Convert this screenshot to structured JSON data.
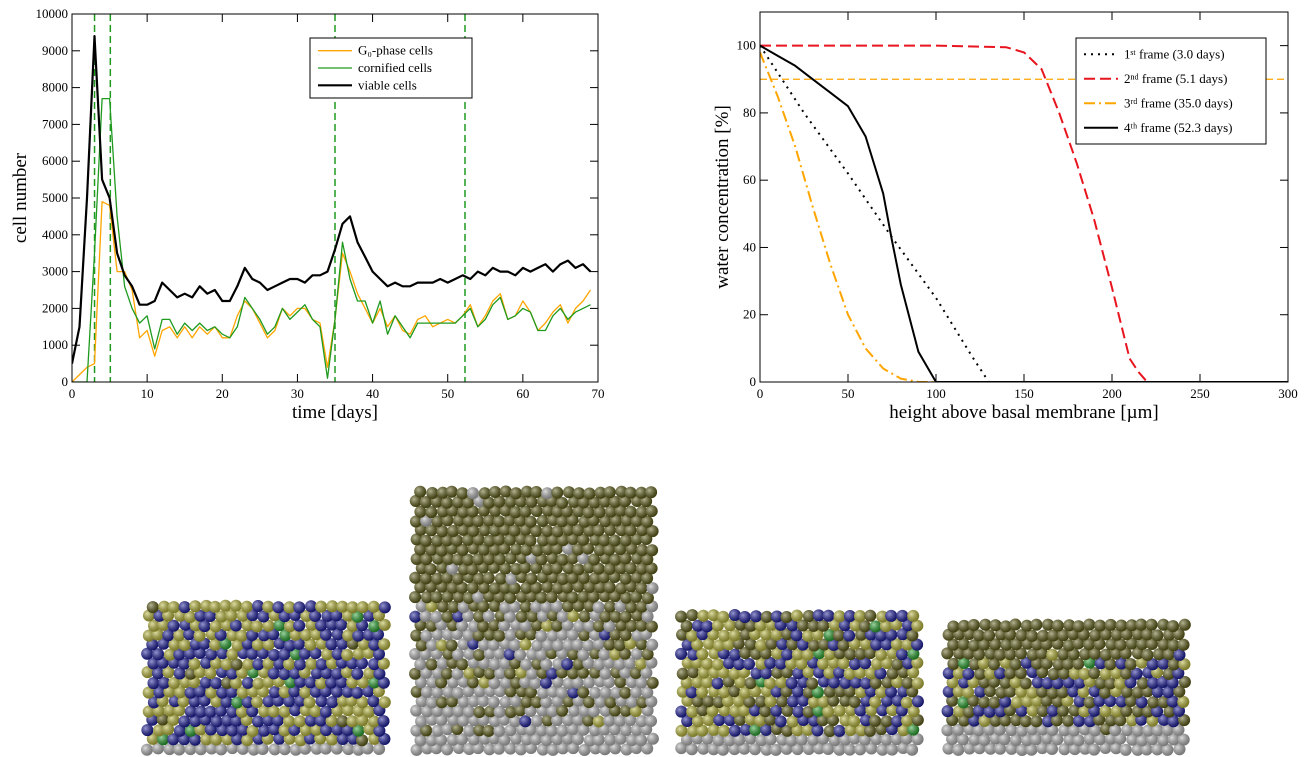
{
  "chart_data": [
    {
      "type": "line",
      "xlabel": "time [days]",
      "ylabel": "cell number",
      "xlim": [
        0,
        70
      ],
      "ylim": [
        0,
        10000
      ],
      "xticks": [
        0,
        10,
        20,
        30,
        40,
        50,
        60,
        70
      ],
      "yticks": [
        0,
        1000,
        2000,
        3000,
        4000,
        5000,
        6000,
        7000,
        8000,
        9000,
        10000
      ],
      "vlines": [
        3.0,
        5.1,
        35.0,
        52.3
      ],
      "vline_color": "#1f9a1f",
      "x": [
        0,
        1,
        2,
        3,
        4,
        5,
        6,
        7,
        8,
        9,
        10,
        11,
        12,
        13,
        14,
        15,
        16,
        17,
        18,
        19,
        20,
        21,
        22,
        23,
        24,
        25,
        26,
        27,
        28,
        29,
        30,
        31,
        32,
        33,
        34,
        35,
        36,
        37,
        38,
        39,
        40,
        41,
        42,
        43,
        44,
        45,
        46,
        47,
        48,
        49,
        50,
        51,
        52,
        53,
        54,
        55,
        56,
        57,
        58,
        59,
        60,
        61,
        62,
        63,
        64,
        65,
        66,
        67,
        68,
        69
      ],
      "series": [
        {
          "name": "G₀-phase cells",
          "color": "#ffa500",
          "width": 1.3,
          "dash": "solid",
          "values": [
            0,
            200,
            400,
            500,
            4900,
            4800,
            3000,
            3000,
            2500,
            1200,
            1400,
            700,
            1400,
            1500,
            1200,
            1500,
            1200,
            1500,
            1300,
            1500,
            1200,
            1200,
            1800,
            2200,
            2000,
            1600,
            1200,
            1400,
            2000,
            1800,
            2000,
            2000,
            1700,
            1600,
            400,
            1700,
            3500,
            3000,
            2400,
            2000,
            1600,
            2000,
            1500,
            1800,
            1400,
            1300,
            1700,
            1800,
            1500,
            1600,
            1700,
            1600,
            1800,
            2100,
            1500,
            1800,
            2200,
            2400,
            1700,
            1800,
            2200,
            1900,
            1400,
            1600,
            1900,
            2100,
            1600,
            2000,
            2200,
            2500
          ]
        },
        {
          "name": "cornified cells",
          "color": "#1f9a1f",
          "width": 1.3,
          "dash": "solid",
          "values": [
            0,
            0,
            0,
            3500,
            7700,
            7700,
            4500,
            2600,
            2000,
            1600,
            1800,
            900,
            1700,
            1700,
            1300,
            1600,
            1400,
            1600,
            1400,
            1500,
            1300,
            1200,
            1500,
            2300,
            2000,
            1700,
            1300,
            1500,
            2000,
            1700,
            1900,
            2100,
            1700,
            1500,
            100,
            1700,
            3800,
            2800,
            2200,
            2200,
            1600,
            2200,
            1300,
            1800,
            1500,
            1200,
            1600,
            1600,
            1600,
            1600,
            1600,
            1600,
            1800,
            2000,
            1500,
            1700,
            2100,
            2300,
            1700,
            1800,
            2000,
            1900,
            1400,
            1400,
            1800,
            2000,
            1700,
            1900,
            2000,
            2100
          ]
        },
        {
          "name": "viable cells",
          "color": "#000000",
          "width": 2.2,
          "dash": "solid",
          "values": [
            500,
            1500,
            5000,
            9400,
            5500,
            5000,
            3500,
            2900,
            2600,
            2100,
            2100,
            2200,
            2700,
            2500,
            2300,
            2400,
            2300,
            2600,
            2400,
            2500,
            2200,
            2200,
            2600,
            3100,
            2800,
            2700,
            2500,
            2600,
            2700,
            2800,
            2800,
            2700,
            2900,
            2900,
            3000,
            3600,
            4300,
            4500,
            3800,
            3400,
            3000,
            2800,
            2600,
            2700,
            2600,
            2600,
            2700,
            2700,
            2700,
            2800,
            2700,
            2800,
            2900,
            2800,
            3000,
            2900,
            3100,
            3000,
            3000,
            2900,
            3100,
            3000,
            3100,
            3200,
            3000,
            3200,
            3300,
            3100,
            3200,
            3000
          ]
        }
      ]
    },
    {
      "type": "line",
      "xlabel": "height above basal membrane [µm]",
      "ylabel": "water concentration [%]",
      "xlim": [
        0,
        300
      ],
      "ylim": [
        0,
        110
      ],
      "xticks": [
        0,
        50,
        100,
        150,
        200,
        250,
        300
      ],
      "yticks": [
        0,
        20,
        40,
        60,
        80,
        100
      ],
      "hline": 90,
      "hline_color": "#ffa500",
      "series": [
        {
          "name": "1ˢᵗ frame (3.0 days)",
          "color": "#000000",
          "width": 2,
          "dash": "dotted",
          "x": [
            0,
            25,
            50,
            75,
            100,
            120,
            130,
            140,
            300
          ],
          "values": [
            100,
            80,
            62,
            43,
            25,
            8,
            0,
            0,
            0
          ]
        },
        {
          "name": "2ⁿᵈ frame (5.1 days)",
          "color": "#e8141e",
          "width": 2,
          "dash": "dashed",
          "x": [
            0,
            50,
            100,
            140,
            150,
            160,
            170,
            180,
            190,
            200,
            210,
            215,
            220,
            300
          ],
          "values": [
            100,
            100,
            100,
            99.5,
            98,
            93,
            80,
            65,
            48,
            28,
            7,
            3,
            0,
            0
          ]
        },
        {
          "name": "3ʳᵈ frame (35.0 days)",
          "color": "#ffa500",
          "width": 2,
          "dash": "dashdot",
          "x": [
            0,
            10,
            20,
            30,
            40,
            50,
            60,
            70,
            80,
            90,
            100,
            300
          ],
          "values": [
            98,
            85,
            70,
            52,
            35,
            20,
            10,
            4,
            1,
            0,
            0,
            0
          ]
        },
        {
          "name": "4ᵗʰ frame (52.3 days)",
          "color": "#000000",
          "width": 2,
          "dash": "solid",
          "x": [
            0,
            10,
            20,
            30,
            40,
            50,
            60,
            70,
            75,
            80,
            90,
            100,
            110,
            300
          ],
          "values": [
            100,
            97,
            94,
            90,
            86,
            82,
            73,
            56,
            42,
            29,
            9,
            0,
            0,
            0
          ]
        }
      ]
    }
  ]
}
